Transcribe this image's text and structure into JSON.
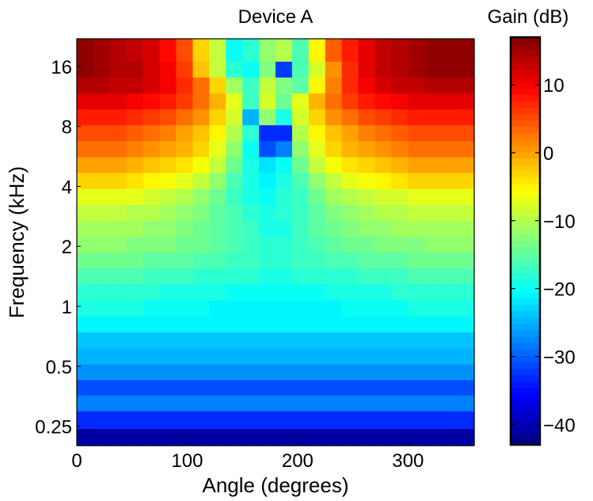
{
  "chart_data": {
    "type": "heatmap",
    "title": "Device A",
    "xlabel": "Angle (degrees)",
    "ylabel": "Frequency (kHz)",
    "colorbar_label": "Gain (dB)",
    "colormap": "jet",
    "xlim": [
      0,
      360
    ],
    "ylim": [
      0.2,
      22
    ],
    "yscale": "log",
    "x_ticks": [
      0,
      100,
      200,
      300
    ],
    "y_ticks": [
      0.25,
      0.5,
      1,
      2,
      4,
      8,
      16
    ],
    "y_tick_labels": [
      "0.25",
      "0.5",
      "1",
      "2",
      "4",
      "8",
      "16"
    ],
    "clim": [
      -43,
      17
    ],
    "colorbar_ticks": [
      10,
      0,
      -10,
      -20,
      -30,
      -40
    ],
    "colorbar_tick_labels": [
      "10",
      "0",
      "−10",
      "−20",
      "−30",
      "−40"
    ],
    "x_angles": [
      0,
      15,
      30,
      45,
      60,
      75,
      90,
      105,
      120,
      135,
      150,
      165,
      180,
      195,
      210,
      225,
      240,
      255,
      270,
      285,
      300,
      315,
      330,
      345
    ],
    "y_freqs_khz": [
      0.22,
      0.27,
      0.33,
      0.39,
      0.47,
      0.56,
      0.68,
      0.81,
      0.98,
      1.18,
      1.42,
      1.7,
      2.05,
      2.46,
      2.96,
      3.56,
      4.28,
      5.14,
      6.18,
      7.43,
      8.93,
      10.7,
      12.9,
      15.5,
      18.6
    ],
    "gain_db": [
      [
        -41,
        -41,
        -41,
        -41,
        -41,
        -41,
        -41,
        -41,
        -41,
        -41,
        -41,
        -41,
        -41,
        -41,
        -41,
        -41,
        -41,
        -41,
        -41,
        -41,
        -41,
        -41,
        -41,
        -41
      ],
      [
        -33,
        -33,
        -33,
        -33,
        -33,
        -33,
        -33,
        -33,
        -33,
        -33,
        -33,
        -33,
        -33,
        -33,
        -33,
        -33,
        -33,
        -33,
        -33,
        -33,
        -33,
        -33,
        -33,
        -33
      ],
      [
        -28,
        -28,
        -28,
        -28,
        -28,
        -28,
        -28,
        -28,
        -28,
        -28,
        -28,
        -28,
        -28,
        -28,
        -28,
        -28,
        -28,
        -28,
        -28,
        -28,
        -28,
        -28,
        -28,
        -28
      ],
      [
        -31,
        -31,
        -31,
        -31,
        -31,
        -31,
        -31,
        -31,
        -31,
        -31,
        -31,
        -31,
        -31,
        -31,
        -31,
        -31,
        -31,
        -31,
        -31,
        -31,
        -31,
        -31,
        -31,
        -31
      ],
      [
        -27,
        -27,
        -27,
        -27,
        -27,
        -27,
        -27,
        -27,
        -27,
        -27,
        -27,
        -27,
        -27,
        -27,
        -27,
        -27,
        -27,
        -27,
        -27,
        -27,
        -27,
        -27,
        -27,
        -27
      ],
      [
        -25,
        -25,
        -25,
        -25,
        -25,
        -25,
        -25,
        -25,
        -25,
        -25,
        -25,
        -25,
        -25,
        -25,
        -25,
        -25,
        -25,
        -25,
        -25,
        -25,
        -25,
        -25,
        -25,
        -25
      ],
      [
        -24,
        -24,
        -24,
        -24,
        -24,
        -24,
        -24,
        -24,
        -24,
        -24,
        -24,
        -24,
        -24,
        -24,
        -24,
        -24,
        -24,
        -24,
        -24,
        -24,
        -24,
        -24,
        -24,
        -24
      ],
      [
        -21,
        -21,
        -21,
        -21,
        -21,
        -21,
        -21,
        -21,
        -21,
        -21,
        -21,
        -21,
        -21,
        -21,
        -21,
        -21,
        -21,
        -21,
        -21,
        -21,
        -21,
        -21,
        -21,
        -21
      ],
      [
        -19,
        -19,
        -19,
        -19,
        -20,
        -20,
        -20,
        -20,
        -21,
        -21,
        -21,
        -21,
        -21,
        -21,
        -21,
        -21,
        -20,
        -20,
        -20,
        -20,
        -19,
        -19,
        -19,
        -19
      ],
      [
        -18,
        -18,
        -18,
        -18,
        -18,
        -19,
        -19,
        -19,
        -19,
        -20,
        -20,
        -20,
        -20,
        -20,
        -20,
        -19,
        -19,
        -19,
        -19,
        -18,
        -18,
        -18,
        -18,
        -18
      ],
      [
        -16,
        -16,
        -16,
        -16,
        -17,
        -17,
        -17,
        -18,
        -18,
        -18,
        -18,
        -19,
        -19,
        -18,
        -18,
        -18,
        -18,
        -17,
        -17,
        -17,
        -16,
        -16,
        -16,
        -16
      ],
      [
        -14,
        -14,
        -14,
        -14,
        -15,
        -15,
        -15,
        -16,
        -16,
        -17,
        -17,
        -18,
        -18,
        -17,
        -17,
        -16,
        -16,
        -15,
        -15,
        -15,
        -14,
        -14,
        -14,
        -14
      ],
      [
        -12,
        -12,
        -12,
        -13,
        -13,
        -13,
        -14,
        -14,
        -15,
        -16,
        -17,
        -18,
        -18,
        -17,
        -16,
        -15,
        -14,
        -14,
        -13,
        -13,
        -13,
        -12,
        -12,
        -12
      ],
      [
        -11,
        -11,
        -11,
        -11,
        -12,
        -12,
        -13,
        -14,
        -15,
        -16,
        -17,
        -19,
        -19,
        -17,
        -15,
        -14,
        -13,
        -12,
        -12,
        -11,
        -11,
        -11,
        -11,
        -11
      ],
      [
        -9,
        -9,
        -9,
        -10,
        -10,
        -11,
        -12,
        -13,
        -15,
        -16,
        -18,
        -19,
        -18,
        -17,
        -15,
        -13,
        -12,
        -11,
        -10,
        -10,
        -9,
        -9,
        -9,
        -9
      ],
      [
        -7,
        -7,
        -7,
        -7,
        -8,
        -9,
        -10,
        -12,
        -14,
        -17,
        -19,
        -20,
        -18,
        -17,
        -14,
        -11,
        -10,
        -9,
        -8,
        -8,
        -7,
        -7,
        -7,
        -7
      ],
      [
        -3,
        -3,
        -3,
        -4,
        -5,
        -6,
        -7,
        -9,
        -12,
        -16,
        -19,
        -21,
        -19,
        -16,
        -12,
        -9,
        -7,
        -6,
        -5,
        -4,
        -3,
        -3,
        -3,
        -3
      ],
      [
        0,
        0,
        0,
        -1,
        -2,
        -3,
        -4,
        -6,
        -9,
        -14,
        -19,
        -22,
        -20,
        -14,
        -9,
        -6,
        -4,
        -3,
        -2,
        -1,
        0,
        0,
        0,
        0
      ],
      [
        3,
        3,
        3,
        2,
        1,
        0,
        -1,
        -3,
        -7,
        -12,
        -20,
        -31,
        -28,
        -12,
        -7,
        -3,
        -1,
        0,
        1,
        2,
        3,
        3,
        3,
        3
      ],
      [
        5,
        5,
        5,
        4,
        3,
        2,
        0,
        -2,
        -5,
        -10,
        -18,
        -33,
        -33,
        -10,
        -5,
        -2,
        0,
        2,
        3,
        4,
        5,
        5,
        5,
        5
      ],
      [
        8,
        8,
        8,
        7,
        6,
        5,
        3,
        1,
        -3,
        -8,
        -25,
        -12,
        -19,
        -8,
        -3,
        1,
        3,
        5,
        6,
        7,
        8,
        8,
        8,
        8
      ],
      [
        11,
        11,
        11,
        10,
        9,
        8,
        6,
        3,
        -1,
        -7,
        -17,
        -8,
        -14,
        -7,
        -1,
        3,
        6,
        8,
        9,
        10,
        11,
        11,
        11,
        11
      ],
      [
        14,
        14,
        13,
        13,
        12,
        10,
        7,
        3,
        -3,
        -11,
        -17,
        -9,
        -13,
        -15,
        -5,
        2,
        7,
        10,
        12,
        13,
        13,
        14,
        14,
        14
      ],
      [
        16,
        15,
        14,
        14,
        12,
        10,
        6,
        -2,
        -9,
        -18,
        -20,
        -13,
        -32,
        -16,
        -8,
        1,
        7,
        11,
        13,
        14,
        15,
        16,
        16,
        16
      ],
      [
        16,
        15,
        14,
        13,
        12,
        9,
        5,
        -3,
        -9,
        -20,
        -18,
        -12,
        -10,
        -16,
        -5,
        4,
        8,
        11,
        13,
        14,
        15,
        16,
        16,
        16
      ]
    ]
  }
}
